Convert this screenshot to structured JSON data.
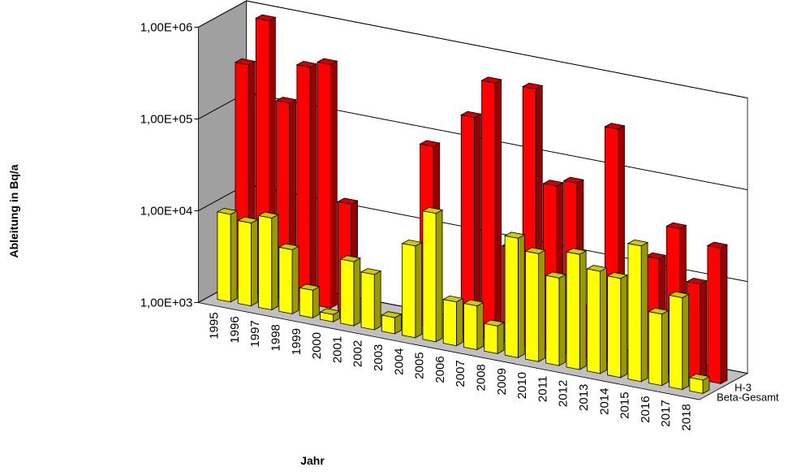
{
  "chart_data": {
    "type": "bar3d",
    "y_title": "Ableitung in Bq/a",
    "x_title": "Jahr",
    "y_scale": "log",
    "categories": [
      "1995",
      "1996",
      "1997",
      "1998",
      "1999",
      "2000",
      "2001",
      "2002",
      "2003",
      "2004",
      "2005",
      "2006",
      "2007",
      "2008",
      "2009",
      "2010",
      "2011",
      "2012",
      "2013",
      "2014",
      "2015",
      "2016",
      "2017",
      "2018"
    ],
    "series": [
      {
        "name": "H-3",
        "color": "#ff0000",
        "values": [
          300000,
          1000000,
          140000,
          380000,
          450000,
          15000,
          null,
          null,
          null,
          95000,
          null,
          240000,
          630000,
          11000,
          660000,
          64000,
          76000,
          3600,
          360000,
          null,
          17000,
          40000,
          11000,
          30000
        ]
      },
      {
        "name": "Beta-Gesamt",
        "color": "#ffff00",
        "values": [
          9000,
          8000,
          10000,
          5000,
          2000,
          1200,
          5000,
          4000,
          1500,
          10000,
          25000,
          3000,
          3000,
          2000,
          20000,
          15000,
          9000,
          18000,
          13000,
          12000,
          30000,
          6000,
          10000,
          1400
        ]
      }
    ],
    "ylim": [
      1000,
      1000000
    ],
    "yticks": [
      {
        "value": 1000,
        "label": "1,00E+03"
      },
      {
        "value": 10000,
        "label": "1,00E+04"
      },
      {
        "value": 100000,
        "label": "1,00E+05"
      },
      {
        "value": 1000000,
        "label": "1,00E+06"
      }
    ],
    "grid": true
  }
}
